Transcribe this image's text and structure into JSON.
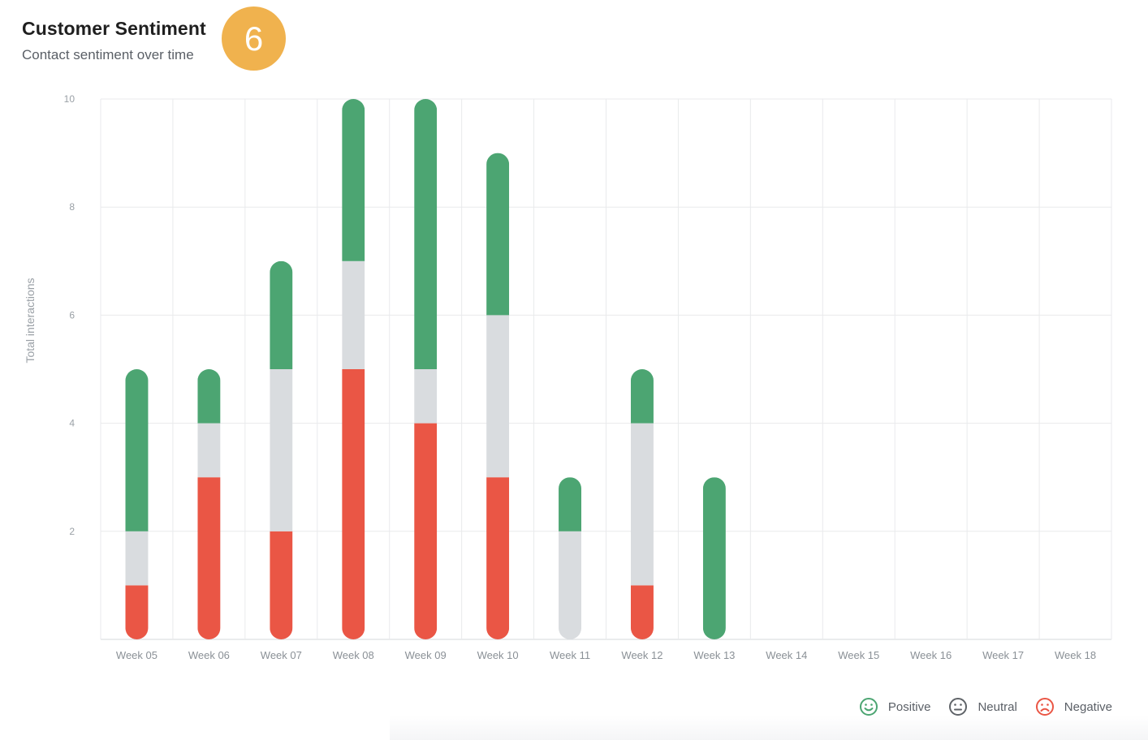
{
  "header": {
    "title": "Customer Sentiment",
    "subtitle": "Contact sentiment over time",
    "step_badge": "6"
  },
  "colors": {
    "positive": "#4ca572",
    "neutral": "#d9dcdf",
    "negative": "#ea5645",
    "badge": "#f0b24e",
    "grid": "#e9eaec"
  },
  "legend": [
    {
      "label": "Positive",
      "icon": "smile-icon",
      "color": "#4ca572"
    },
    {
      "label": "Neutral",
      "icon": "neutral-face-icon",
      "color": "#5f6368"
    },
    {
      "label": "Negative",
      "icon": "frown-icon",
      "color": "#ea5645"
    }
  ],
  "chart_data": {
    "type": "bar",
    "stacked": true,
    "title": "",
    "xlabel": "",
    "ylabel": "Total interactions",
    "ylim": [
      0,
      10
    ],
    "yticks": [
      2,
      4,
      6,
      8,
      10
    ],
    "categories": [
      "Week 05",
      "Week 06",
      "Week 07",
      "Week 08",
      "Week 09",
      "Week 10",
      "Week 11",
      "Week 12",
      "Week 13",
      "Week 14",
      "Week 15",
      "Week 16",
      "Week 17",
      "Week 18"
    ],
    "series": [
      {
        "name": "Negative",
        "values": [
          1,
          3,
          2,
          5,
          4,
          3,
          0,
          1,
          0,
          0,
          0,
          0,
          0,
          0
        ]
      },
      {
        "name": "Neutral",
        "values": [
          1,
          1,
          3,
          2,
          1,
          3,
          2,
          3,
          0,
          0,
          0,
          0,
          0,
          0
        ]
      },
      {
        "name": "Positive",
        "values": [
          3,
          1,
          2,
          3,
          5,
          3,
          1,
          1,
          3,
          0,
          0,
          0,
          0,
          0
        ]
      }
    ],
    "grid": true,
    "legend_position": "bottom-right"
  }
}
